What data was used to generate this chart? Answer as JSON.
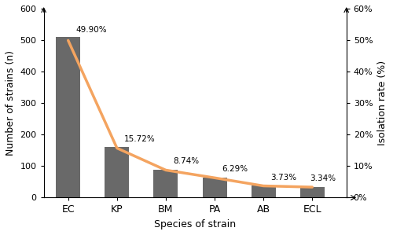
{
  "categories": [
    "EC",
    "KP",
    "BM",
    "PA",
    "AB",
    "ECL"
  ],
  "bar_values": [
    509,
    160,
    88.7,
    63.8,
    37.8,
    33.9
  ],
  "isolation_rates": [
    49.9,
    15.72,
    8.74,
    6.29,
    3.73,
    3.34
  ],
  "rate_labels": [
    "49.90%",
    "15.72%",
    "8.74%",
    "6.29%",
    "3.73%",
    "3.34%"
  ],
  "bar_color": "#696969",
  "line_color": "#F4A460",
  "ylim_left": [
    0,
    600
  ],
  "ylim_right": [
    0,
    60
  ],
  "yticks_left": [
    0,
    100,
    200,
    300,
    400,
    500,
    600
  ],
  "yticks_right": [
    0,
    10,
    20,
    30,
    40,
    50,
    60
  ],
  "ytick_labels_right": [
    "0%",
    "10%",
    "20%",
    "30%",
    "40%",
    "50%",
    "60%"
  ],
  "xlabel": "Species of strain",
  "ylabel_left": "Number of strains (n)",
  "ylabel_right": "Isolation rate (%)",
  "figsize": [
    5.0,
    2.99
  ],
  "dpi": 100
}
